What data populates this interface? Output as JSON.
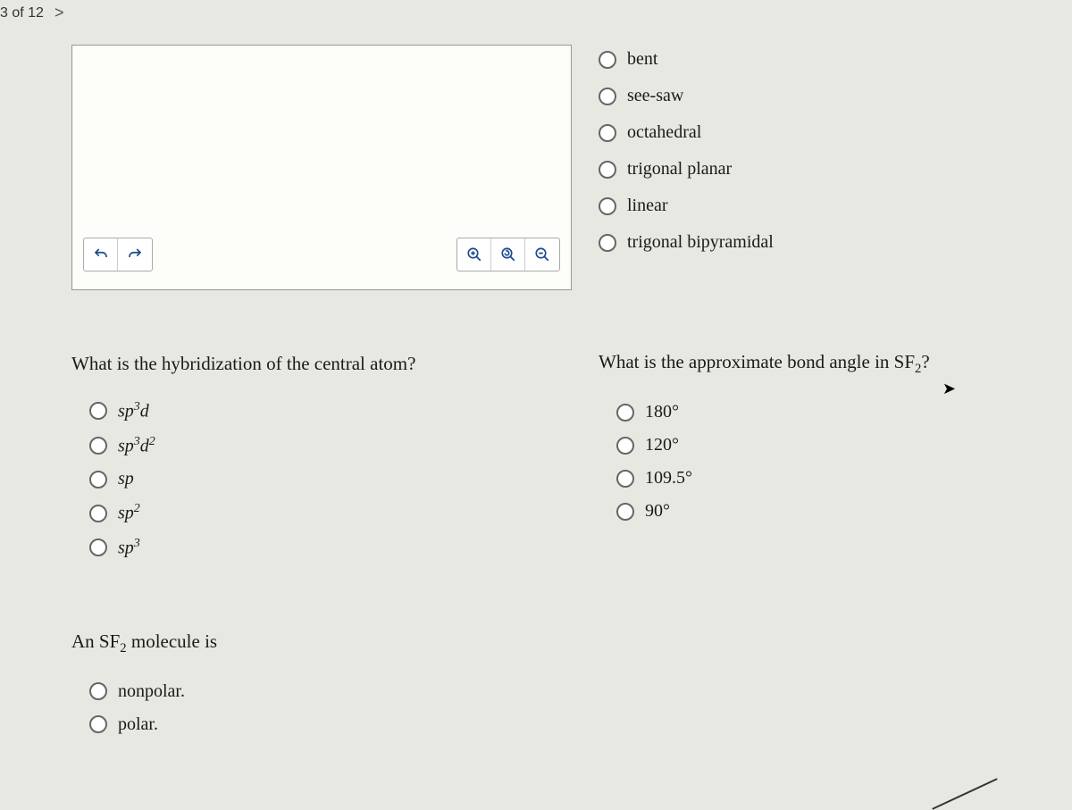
{
  "pager": {
    "position_text": "3 of 12",
    "next_symbol": ">"
  },
  "toolbar": {
    "left": [
      {
        "name": "undo"
      },
      {
        "name": "redo"
      }
    ],
    "right": [
      {
        "name": "zoom-in"
      },
      {
        "name": "reset-zoom"
      },
      {
        "name": "zoom-out"
      }
    ]
  },
  "shape_question": {
    "options": [
      "bent",
      "see-saw",
      "octahedral",
      "trigonal planar",
      "linear",
      "trigonal bipyramidal"
    ]
  },
  "hybridization_question": {
    "prompt": "What is the hybridization of the central atom?",
    "options_html": [
      "sp<sup>3</sup>d",
      "sp<sup>3</sup>d<sup>2</sup>",
      "sp",
      "sp<sup>2</sup>",
      "sp<sup>3</sup>"
    ]
  },
  "bondangle_question": {
    "prompt_html": "What is the approximate bond angle in SF<sub>2</sub>?",
    "options": [
      "180°",
      "120°",
      "109.5°",
      "90°"
    ]
  },
  "polarity_question": {
    "prompt_html": "An SF<sub>2</sub> molecule is",
    "options": [
      "nonpolar.",
      "polar."
    ]
  },
  "colors": {
    "bg": "#e8e8e2",
    "icon": "#1a4a8a",
    "text": "#1a1a1a"
  }
}
